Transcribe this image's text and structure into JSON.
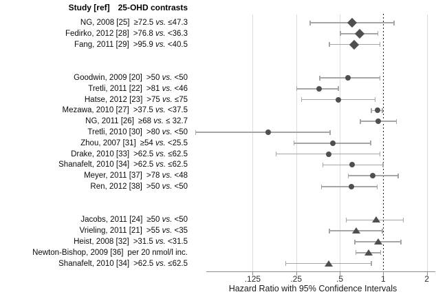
{
  "header": {
    "study_col": "Study [ref]",
    "contrast_col": "25-OHD contrasts"
  },
  "labels": {
    "vs": "vs."
  },
  "chart_data": {
    "type": "forest",
    "x_scale": "log2",
    "xlabel": "Hazard Ratio with 95% Confidence Intervals",
    "xlim": [
      0.05,
      2.2
    ],
    "x_ticks": [
      {
        "label": ".125",
        "value": 0.125
      },
      {
        "label": ".25",
        "value": 0.25
      },
      {
        "label": ".5",
        "value": 0.5
      },
      {
        "label": "1",
        "value": 1
      },
      {
        "label": "2",
        "value": 2
      }
    ],
    "ref_line": 1,
    "grid": "on",
    "marker_color": "#4f4f4f",
    "ci_color": "#a6a6a6",
    "grid_color": "#dcdcdc",
    "studies": [
      {
        "study": "NG, 2008 [25]",
        "contrast_left": "≥72.5",
        "contrast_right": "≤47.3",
        "hr": 0.61,
        "ci_low": 0.31,
        "ci_high": 1.19,
        "marker": "diamond",
        "group": 1
      },
      {
        "study": "Fedirko, 2012 [28]",
        "contrast_left": ">76.8",
        "contrast_right": "<36.3",
        "hr": 0.69,
        "ci_low": 0.5,
        "ci_high": 0.92,
        "marker": "diamond",
        "group": 1
      },
      {
        "study": "Fang, 2011 [29]",
        "contrast_left": ">95.9",
        "contrast_right": "<40.5",
        "hr": 0.63,
        "ci_low": 0.42,
        "ci_high": 0.95,
        "marker": "diamond",
        "group": 1
      },
      {
        "study": "Goodwin, 2009 [20]",
        "contrast_left": ">50",
        "contrast_right": "<50",
        "hr": 0.57,
        "ci_low": 0.36,
        "ci_high": 0.95,
        "marker": "circle",
        "group": 2
      },
      {
        "study": "Tretli, 2011 [22]",
        "contrast_left": ">81",
        "contrast_right": "<46",
        "hr": 0.36,
        "ci_low": 0.25,
        "ci_high": 0.49,
        "marker": "circle",
        "group": 2
      },
      {
        "study": "Hatse, 2012 [23]",
        "contrast_left": ">75",
        "contrast_right": "≤75",
        "hr": 0.49,
        "ci_low": 0.27,
        "ci_high": 0.88,
        "marker": "circle",
        "group": 2
      },
      {
        "study": "Mezawa, 2010 [27]",
        "contrast_left": ">37.5",
        "contrast_right": "<37.5",
        "hr": 0.91,
        "ci_low": 0.82,
        "ci_high": 0.99,
        "marker": "circle",
        "group": 2
      },
      {
        "study": "NG, 2011 [26]",
        "contrast_left": "≥68",
        "contrast_right": "≤ 32.7",
        "hr": 0.92,
        "ci_low": 0.69,
        "ci_high": 1.24,
        "marker": "circle",
        "group": 2
      },
      {
        "study": "Tretli, 2010 [30]",
        "contrast_left": ">80",
        "contrast_right": "<50",
        "hr": 0.16,
        "ci_low": 0.05,
        "ci_high": 0.43,
        "marker": "circle",
        "group": 2
      },
      {
        "study": "Zhou, 2007 [31]",
        "contrast_left": "≥54",
        "contrast_right": "<25.5",
        "hr": 0.45,
        "ci_low": 0.24,
        "ci_high": 0.82,
        "marker": "circle",
        "group": 2
      },
      {
        "study": "Drake, 2010 [33]",
        "contrast_left": ">62.5",
        "contrast_right": "≤62.5",
        "hr": 0.42,
        "ci_low": 0.18,
        "ci_high": 0.95,
        "marker": "circle",
        "group": 2
      },
      {
        "study": "Shanafelt, 2010 [34]",
        "contrast_left": ">62.5",
        "contrast_right": "≤62.5",
        "hr": 0.61,
        "ci_low": 0.38,
        "ci_high": 1.0,
        "marker": "circle",
        "group": 2
      },
      {
        "study": "Meyer, 2011 [37]",
        "contrast_left": ">78",
        "contrast_right": "<48",
        "hr": 0.85,
        "ci_low": 0.57,
        "ci_high": 1.27,
        "marker": "circle",
        "group": 2
      },
      {
        "study": "Ren, 2012 [38]",
        "contrast_left": ">50",
        "contrast_right": "<50",
        "hr": 0.6,
        "ci_low": 0.37,
        "ci_high": 0.91,
        "marker": "circle",
        "group": 2
      },
      {
        "study": "Jacobs, 2011 [24]",
        "contrast_left": "≥50",
        "contrast_right": "<50",
        "hr": 0.89,
        "ci_low": 0.55,
        "ci_high": 1.38,
        "marker": "triangle",
        "group": 3
      },
      {
        "study": "Vrieling, 2011 [21]",
        "contrast_left": ">55",
        "contrast_right": "<35",
        "hr": 0.65,
        "ci_low": 0.42,
        "ci_high": 0.99,
        "marker": "triangle",
        "group": 3
      },
      {
        "study": "Heist, 2008 [32]",
        "contrast_left": ">31.5",
        "contrast_right": "<31.5",
        "hr": 0.92,
        "ci_low": 0.63,
        "ci_high": 1.33,
        "marker": "triangle",
        "group": 3
      },
      {
        "study": "Newton-Bishop, 2009 [36]",
        "contrast_left": "per 20 nmol/l inc.",
        "contrast_right": "",
        "hr": 0.79,
        "ci_low": 0.64,
        "ci_high": 0.96,
        "marker": "triangle",
        "group": 3
      },
      {
        "study": "Shanafelt, 2010 [34]",
        "contrast_left": ">62.5",
        "contrast_right": "≤62.5",
        "hr": 0.42,
        "ci_low": 0.21,
        "ci_high": 0.83,
        "marker": "triangle",
        "group": 3
      }
    ]
  }
}
